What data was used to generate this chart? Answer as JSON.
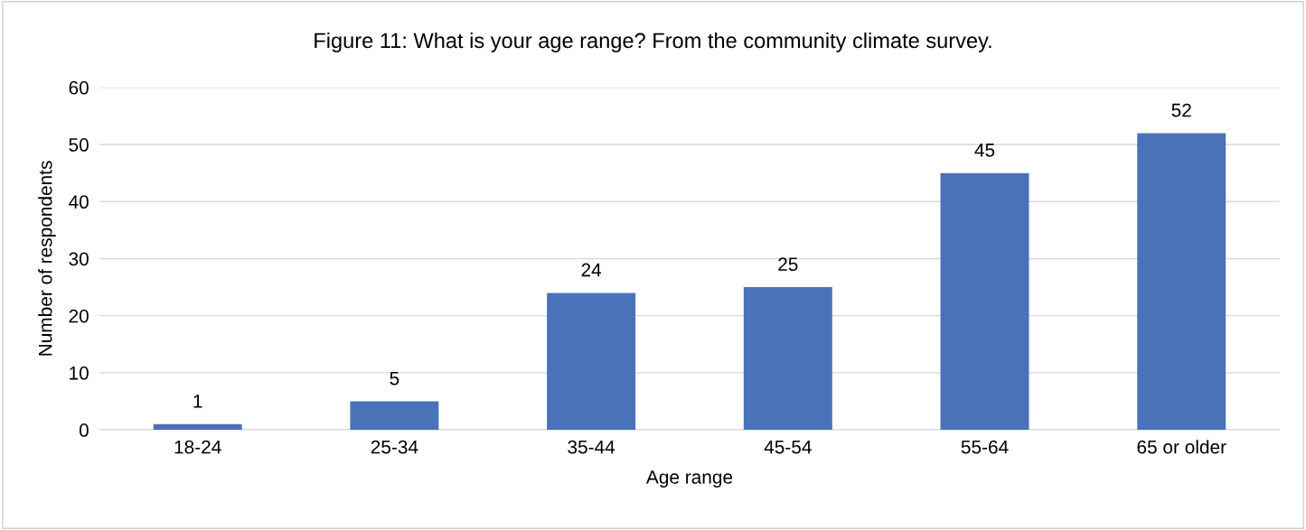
{
  "chart_data": {
    "type": "bar",
    "title": "Figure 11: What is your age range? From the community climate survey.",
    "xlabel": "Age range",
    "ylabel": "Number of respondents",
    "categories": [
      "18-24",
      "25-34",
      "35-44",
      "45-54",
      "55-64",
      "65 or older"
    ],
    "values": [
      1,
      5,
      24,
      25,
      45,
      52
    ],
    "color": "#4a72b8",
    "ylim": [
      0,
      60
    ],
    "yticks": [
      0,
      10,
      20,
      30,
      40,
      50,
      60
    ],
    "grid": "y",
    "data_labels": true
  }
}
